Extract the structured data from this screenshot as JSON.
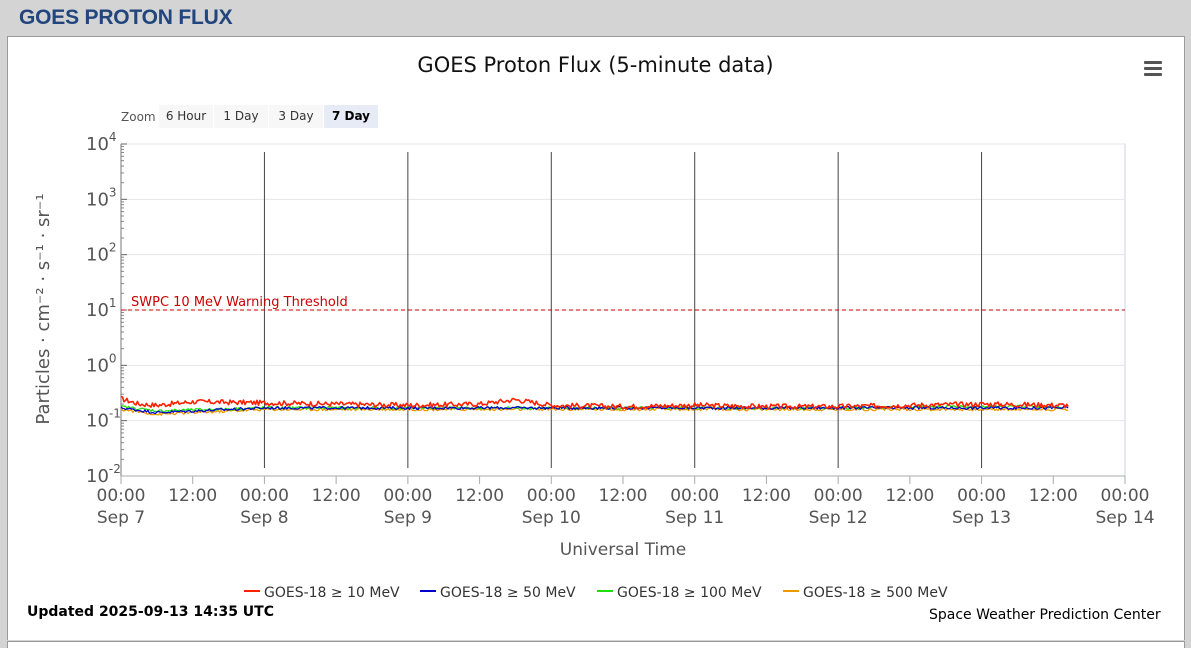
{
  "page": {
    "title": "GOES PROTON FLUX"
  },
  "chart": {
    "title": "GOES Proton Flux (5-minute data)",
    "menu_icon": "hamburger-menu-icon",
    "zoom": {
      "label": "Zoom",
      "buttons": [
        "6 Hour",
        "1 Day",
        "3 Day",
        "7 Day"
      ],
      "active": "7 Day"
    },
    "updated": "Updated 2025-09-13 14:35 UTC",
    "credit": "Space Weather Prediction Center"
  },
  "chart_data": {
    "type": "line",
    "title": "GOES Proton Flux (5-minute data)",
    "xlabel": "Universal Time",
    "ylabel": "Particles · cm⁻² · s⁻¹ · sr⁻¹",
    "yscale": "log",
    "ylim": [
      0.01,
      10000
    ],
    "y_ticks": [
      "10^-2",
      "10^-1",
      "10^0",
      "10^1",
      "10^2",
      "10^3",
      "10^4"
    ],
    "xlim": [
      "2025-09-07 00:00",
      "2025-09-14 00:00"
    ],
    "x_ticks": [
      {
        "time": "00:00",
        "date": "Sep 7"
      },
      {
        "time": "12:00",
        "date": ""
      },
      {
        "time": "00:00",
        "date": "Sep 8"
      },
      {
        "time": "12:00",
        "date": ""
      },
      {
        "time": "00:00",
        "date": "Sep 9"
      },
      {
        "time": "12:00",
        "date": ""
      },
      {
        "time": "00:00",
        "date": "Sep 10"
      },
      {
        "time": "12:00",
        "date": ""
      },
      {
        "time": "00:00",
        "date": "Sep 11"
      },
      {
        "time": "12:00",
        "date": ""
      },
      {
        "time": "00:00",
        "date": "Sep 12"
      },
      {
        "time": "12:00",
        "date": ""
      },
      {
        "time": "00:00",
        "date": "Sep 13"
      },
      {
        "time": "12:00",
        "date": ""
      },
      {
        "time": "00:00",
        "date": "Sep 14"
      }
    ],
    "grid": true,
    "legend_position": "bottom",
    "threshold": {
      "label": "SWPC 10 MeV Warning Threshold",
      "value": 10,
      "color": "#cc0000"
    },
    "series": [
      {
        "name": "GOES-18 ≥ 10 MeV",
        "color": "#ff2000",
        "x": [
          "2025-09-07 00:00",
          "2025-09-07 03:00",
          "2025-09-07 06:00",
          "2025-09-07 12:00",
          "2025-09-08 00:00",
          "2025-09-08 12:00",
          "2025-09-09 00:00",
          "2025-09-09 12:00",
          "2025-09-09 18:00",
          "2025-09-10 00:00",
          "2025-09-10 12:00",
          "2025-09-11 00:00",
          "2025-09-11 12:00",
          "2025-09-12 00:00",
          "2025-09-12 12:00",
          "2025-09-13 00:00",
          "2025-09-13 14:35"
        ],
        "y": [
          0.25,
          0.2,
          0.19,
          0.22,
          0.21,
          0.2,
          0.19,
          0.2,
          0.24,
          0.19,
          0.18,
          0.19,
          0.18,
          0.18,
          0.19,
          0.2,
          0.19
        ]
      },
      {
        "name": "GOES-18 ≥ 50 MeV",
        "color": "#0000cc",
        "x": [
          "2025-09-07 00:00",
          "2025-09-07 06:00",
          "2025-09-08 00:00",
          "2025-09-09 00:00",
          "2025-09-10 00:00",
          "2025-09-11 00:00",
          "2025-09-12 00:00",
          "2025-09-13 00:00",
          "2025-09-13 14:35"
        ],
        "y": [
          0.17,
          0.14,
          0.17,
          0.17,
          0.17,
          0.17,
          0.17,
          0.17,
          0.17
        ]
      },
      {
        "name": "GOES-18 ≥ 100 MeV",
        "color": "#22dd11",
        "x": [
          "2025-09-07 00:00",
          "2025-09-07 06:00",
          "2025-09-08 00:00",
          "2025-09-09 00:00",
          "2025-09-10 00:00",
          "2025-09-11 00:00",
          "2025-09-12 00:00",
          "2025-09-13 00:00",
          "2025-09-13 14:35"
        ],
        "y": [
          0.18,
          0.15,
          0.17,
          0.17,
          0.17,
          0.17,
          0.17,
          0.18,
          0.18
        ]
      },
      {
        "name": "GOES-18 ≥ 500 MeV",
        "color": "#ee9900",
        "x": [
          "2025-09-07 00:00",
          "2025-09-07 06:00",
          "2025-09-08 00:00",
          "2025-09-09 00:00",
          "2025-09-10 00:00",
          "2025-09-11 00:00",
          "2025-09-12 00:00",
          "2025-09-13 00:00",
          "2025-09-13 14:35"
        ],
        "y": [
          0.16,
          0.13,
          0.16,
          0.16,
          0.16,
          0.16,
          0.16,
          0.16,
          0.16
        ]
      }
    ]
  },
  "colors": {
    "header_text": "#21457c",
    "background": "#d4d4d4"
  }
}
